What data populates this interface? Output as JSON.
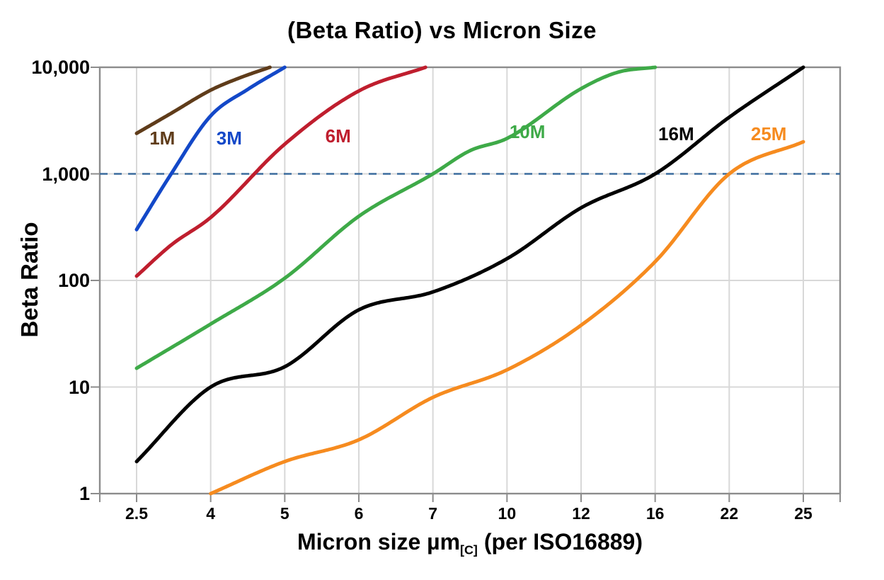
{
  "title": "(Beta Ratio) vs Micron Size",
  "y_axis": {
    "title": "Beta Ratio",
    "tick_labels": [
      "1",
      "10",
      "100",
      "1,000",
      "10,000"
    ],
    "tick_values": [
      1,
      10,
      100,
      1000,
      10000
    ]
  },
  "x_axis": {
    "title_main": "Micron size µm",
    "title_sub": "[C]",
    "title_tail": "(per ISO16889)",
    "tick_labels": [
      "2.5",
      "4",
      "5",
      "6",
      "7",
      "10",
      "12",
      "16",
      "22",
      "25"
    ]
  },
  "reference_line": {
    "beta": 1000,
    "color": "#3a6b9d",
    "style": "dashed"
  },
  "colors": {
    "grid": "#d8d8d8",
    "border": "#8c8c8c",
    "text": "#000000",
    "background": "#ffffff"
  },
  "chart_data": {
    "type": "line",
    "title": "(Beta Ratio) vs Micron Size",
    "xlabel": "Micron size µm[C] (per ISO16889)",
    "ylabel": "Beta Ratio",
    "x_scale": "categorical-equal-spacing",
    "categories": [
      2.5,
      4,
      5,
      6,
      7,
      10,
      12,
      16,
      22,
      25
    ],
    "y_scale": "log",
    "ylim": [
      1,
      10000
    ],
    "y_ticks": [
      1,
      10,
      100,
      1000,
      10000
    ],
    "grid": true,
    "legend": "inline-curve-labels",
    "reference_line_beta": 1000,
    "series": [
      {
        "name": "1M",
        "color": "#5f3c1a",
        "label_anchor": {
          "x": 3.02,
          "beta": 2100
        },
        "points": [
          [
            2.5,
            2400
          ],
          [
            3.2,
            3700
          ],
          [
            4,
            6100
          ],
          [
            4.4,
            8000
          ],
          [
            4.8,
            10000
          ]
        ]
      },
      {
        "name": "3M",
        "color": "#1348c8",
        "label_anchor": {
          "x": 4.25,
          "beta": 2100
        },
        "points": [
          [
            2.5,
            300
          ],
          [
            3.2,
            1000
          ],
          [
            4,
            3500
          ],
          [
            4.5,
            6200
          ],
          [
            5,
            10000
          ]
        ]
      },
      {
        "name": "6M",
        "color": "#bf1e2e",
        "label_anchor": {
          "x": 5.72,
          "beta": 2200
        },
        "points": [
          [
            2.5,
            110
          ],
          [
            3.2,
            215
          ],
          [
            4,
            390
          ],
          [
            5,
            1900
          ],
          [
            6,
            6000
          ],
          [
            6.9,
            10000
          ]
        ]
      },
      {
        "name": "10M",
        "color": "#3eaa48",
        "label_anchor": {
          "x": 10.55,
          "beta": 2400
        },
        "points": [
          [
            2.5,
            15
          ],
          [
            4,
            39
          ],
          [
            5,
            105
          ],
          [
            6,
            400
          ],
          [
            7,
            1000
          ],
          [
            8.5,
            1650
          ],
          [
            10,
            2150
          ],
          [
            12,
            6300
          ],
          [
            14,
            9000
          ],
          [
            16,
            10000
          ]
        ]
      },
      {
        "name": "16M",
        "color": "#000000",
        "label_anchor": {
          "x": 17.7,
          "beta": 2300
        },
        "points": [
          [
            2.5,
            2
          ],
          [
            4,
            10
          ],
          [
            5,
            15.5
          ],
          [
            6,
            53
          ],
          [
            7,
            78
          ],
          [
            10,
            160
          ],
          [
            12,
            480
          ],
          [
            16,
            1000
          ],
          [
            22,
            3400
          ],
          [
            25,
            10000
          ]
        ]
      },
      {
        "name": "25M",
        "color": "#f68b1f",
        "label_anchor": {
          "x": 23.6,
          "beta": 2300
        },
        "points": [
          [
            4,
            1
          ],
          [
            5,
            2
          ],
          [
            6,
            3.2
          ],
          [
            7,
            8
          ],
          [
            10,
            14.5
          ],
          [
            12,
            38
          ],
          [
            16,
            150
          ],
          [
            22,
            1000
          ],
          [
            25,
            2000
          ]
        ]
      }
    ]
  }
}
